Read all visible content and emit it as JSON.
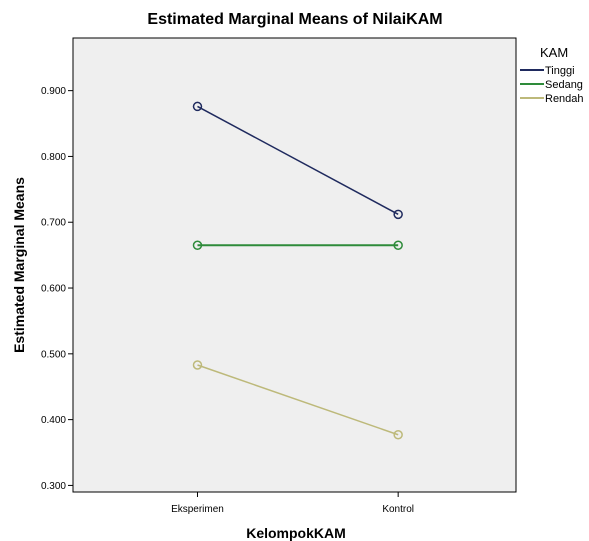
{
  "chart_data": {
    "type": "line",
    "title": "Estimated Marginal Means of NilaiKAM",
    "xlabel": "KelompokKAM",
    "ylabel": "Estimated Marginal Means",
    "categories": [
      "Eksperimen",
      "Kontrol"
    ],
    "ylim": [
      0.29,
      0.98
    ],
    "yticks": [
      0.3,
      0.4,
      0.5,
      0.6,
      0.7,
      0.8,
      0.9
    ],
    "ytick_labels": [
      "0.300",
      "0.400",
      "0.500",
      "0.600",
      "0.700",
      "0.800",
      "0.900"
    ],
    "grid": false,
    "legend_title": "KAM",
    "legend_position": "right",
    "plot_background": "#efefef",
    "series": [
      {
        "name": "Tinggi",
        "values": [
          0.876,
          0.712
        ],
        "color": "#1f2a5e"
      },
      {
        "name": "Sedang",
        "values": [
          0.665,
          0.665
        ],
        "color": "#2e8b3a"
      },
      {
        "name": "Rendah",
        "values": [
          0.483,
          0.377
        ],
        "color": "#bdb97a"
      }
    ]
  }
}
